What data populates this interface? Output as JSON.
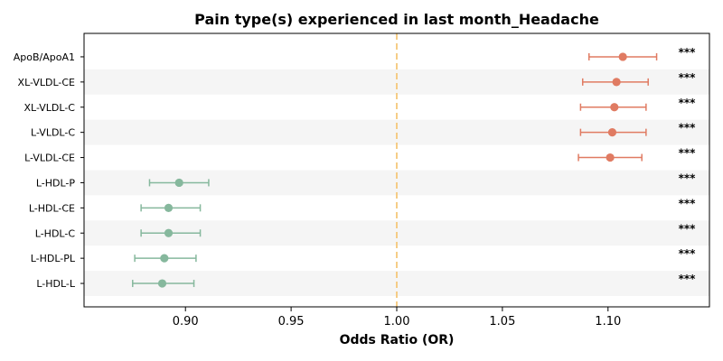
{
  "chart_data": {
    "type": "forest",
    "title": "Pain type(s) experienced in last month_Headache",
    "xlabel": "Odds Ratio (OR)",
    "xlim": [
      0.852,
      1.148
    ],
    "xticks": [
      0.9,
      0.95,
      1.0,
      1.05,
      1.1
    ],
    "xtick_labels": [
      "0.90",
      "0.95",
      "1.00",
      "1.05",
      "1.10"
    ],
    "reference_line": 1.0,
    "colors": {
      "positive": "#e07b62",
      "negative": "#86b89d",
      "reference": "#f5c87a",
      "band": "#f5f5f5"
    },
    "categories": [
      "ApoB/ApoA1",
      "XL-VLDL-CE",
      "XL-VLDL-C",
      "L-VLDL-C",
      "L-VLDL-CE",
      "L-HDL-P",
      "L-HDL-CE",
      "L-HDL-C",
      "L-HDL-PL",
      "L-HDL-L"
    ],
    "or": [
      1.107,
      1.104,
      1.103,
      1.102,
      1.101,
      0.897,
      0.892,
      0.892,
      0.89,
      0.889
    ],
    "ci_low": [
      1.091,
      1.088,
      1.087,
      1.087,
      1.086,
      0.883,
      0.879,
      0.879,
      0.876,
      0.875
    ],
    "ci_high": [
      1.123,
      1.119,
      1.118,
      1.118,
      1.116,
      0.911,
      0.907,
      0.907,
      0.905,
      0.904
    ],
    "significance": [
      "***",
      "***",
      "***",
      "***",
      "***",
      "***",
      "***",
      "***",
      "***",
      "***"
    ]
  }
}
